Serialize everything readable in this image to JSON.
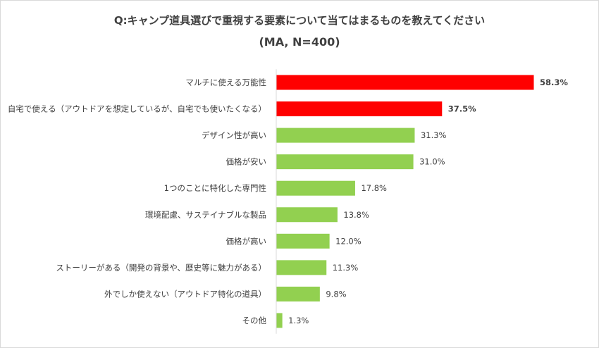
{
  "chart_data": {
    "type": "bar",
    "orientation": "horizontal",
    "title": "Q:キャンプ道具選びで重視する要素について当てはまるものを教えてください",
    "subtitle": "(MA, N=400)",
    "categories": [
      "マルチに使える万能性",
      "自宅で使える（アウトドアを想定しているが、自宅でも使いたくなる）",
      "デザイン性が高い",
      "価格が安い",
      "1つのことに特化した専門性",
      "環境配慮、サステイナブルな製品",
      "価格が高い",
      "ストーリーがある（開発の背景や、歴史等に魅力がある）",
      "外でしか使えない（アウトドア特化の道具）",
      "その他"
    ],
    "values": [
      58.3,
      37.5,
      31.3,
      31.0,
      17.8,
      13.8,
      12.0,
      11.3,
      9.8,
      1.3
    ],
    "value_labels": [
      "58.3%",
      "37.5%",
      "31.3%",
      "31.0%",
      "17.8%",
      "13.8%",
      "12.0%",
      "11.3%",
      "9.8%",
      "1.3%"
    ],
    "highlight_count": 2,
    "colors": {
      "highlight": "#ff0000",
      "normal": "#92d050",
      "axis": "#d9d9d9",
      "text": "#404040"
    },
    "xlim": [
      0,
      58.3
    ],
    "grid": false
  }
}
